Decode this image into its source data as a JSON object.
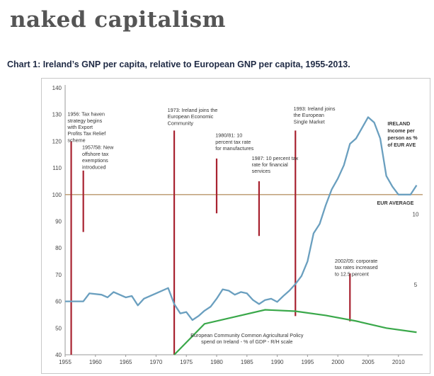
{
  "site": {
    "title": "naked capitalism"
  },
  "chart_title": "Chart 1: Ireland’s GNP per capita, relative to European GNP per capita, 1955-2013.",
  "colors": {
    "ireland": "#6a9fbf",
    "eu_average": "#b8956a",
    "cap": "#3aa84a",
    "markers": "#a82230",
    "ireland_label": "#5aa7c8",
    "eur_label": "#c07a3a",
    "cap_label": "#2a8a35"
  },
  "chart_data": {
    "type": "line",
    "xlim": [
      1955,
      2014
    ],
    "ylim": [
      40,
      140
    ],
    "ylim_right": [
      0,
      19
    ],
    "grid": false,
    "x_ticks": [
      1955,
      1960,
      1965,
      1970,
      1975,
      1980,
      1985,
      1990,
      1995,
      2000,
      2005,
      2010
    ],
    "y_ticks": [
      40,
      50,
      60,
      70,
      80,
      90,
      100,
      110,
      120,
      130,
      140
    ],
    "right_ticks": [
      5,
      10
    ],
    "series": [
      {
        "name": "IRELAND Income per person as % of EUR AVE",
        "axis": "left",
        "color": "#6a9fbf",
        "x": [
          1955,
          1958,
          1959,
          1961,
          1962,
          1963,
          1964,
          1965,
          1966,
          1967,
          1968,
          1969,
          1970,
          1972,
          1973,
          1974,
          1975,
          1976,
          1977,
          1978,
          1979,
          1980,
          1981,
          1982,
          1983,
          1984,
          1985,
          1986,
          1987,
          1988,
          1989,
          1990,
          1991,
          1992,
          1993,
          1994,
          1995,
          1996,
          1997,
          1998,
          1999,
          2000,
          2001,
          2002,
          2003,
          2004,
          2005,
          2006,
          2007,
          2008,
          2009,
          2010,
          2011,
          2012,
          2013
        ],
        "y": [
          60,
          60,
          63,
          62.5,
          61.5,
          63.5,
          62.5,
          61.5,
          62,
          58.5,
          61,
          62,
          63,
          65,
          59,
          55.5,
          56,
          53,
          54.5,
          56.5,
          58,
          61,
          64.5,
          64,
          62.5,
          63.5,
          63,
          60.5,
          59,
          60.5,
          61,
          59.8,
          62,
          64,
          66.5,
          69.5,
          75,
          85.5,
          89,
          96,
          102,
          106,
          111,
          119,
          121,
          125,
          129,
          127,
          121,
          107,
          103,
          100,
          100,
          100,
          103.5
        ]
      },
      {
        "name": "EUR AVERAGE",
        "axis": "left",
        "color": "#b8956a",
        "x": [
          1955,
          2014
        ],
        "y": [
          100,
          100
        ]
      },
      {
        "name": "European Community Common Agricultural Policy spend on Ireland - % of GDP - R/H scale",
        "axis": "right",
        "color": "#3aa84a",
        "x": [
          1973,
          1978,
          1983,
          1988,
          1993,
          1998,
          2003,
          2008,
          2013
        ],
        "y": [
          0,
          2.2,
          2.7,
          3.2,
          3.1,
          2.8,
          2.4,
          1.9,
          1.6
        ]
      }
    ],
    "markers": [
      {
        "year": 1956,
        "y_top": 120,
        "y_bottom": 40,
        "label": [
          "1956: Tax haven",
          "strategy begins",
          "with Export",
          "Profits Tax Relief",
          "scheme"
        ]
      },
      {
        "year": 1958,
        "y_top": 109,
        "y_bottom": 86,
        "label": [
          "1957/58: New",
          "offshore tax",
          "exemptions",
          "introduced"
        ]
      },
      {
        "year": 1973,
        "y_top": 124,
        "y_bottom": 40,
        "label": [
          "1973: Ireland joins the",
          "European Economic",
          "Community"
        ]
      },
      {
        "year": 1980,
        "y_top": 113.5,
        "y_bottom": 93,
        "label": [
          "1980/81: 10",
          "percent tax rate",
          "for manufactures"
        ]
      },
      {
        "year": 1987,
        "y_top": 105,
        "y_bottom": 84.5,
        "label": [
          "1987: 10 percent tax",
          "rate for financial",
          "services"
        ]
      },
      {
        "year": 1993,
        "y_top": 124,
        "y_bottom": 54.5,
        "label": [
          "1993: Ireland joins",
          "the European",
          "Single Market"
        ]
      },
      {
        "year": 2002,
        "y_top": 70.5,
        "y_bottom": 52.5,
        "label": [
          "2002/05: corporate",
          "tax rates increased",
          "to 12.5 percent"
        ]
      }
    ],
    "labels": {
      "ireland": [
        "IRELAND",
        "Income per",
        "person as %",
        "of EUR AVE"
      ],
      "eur_average": "EUR AVERAGE",
      "cap": [
        "European Community Common Agricultural Policy",
        "spend on Ireland - % of GDP - R/H scale"
      ]
    }
  }
}
